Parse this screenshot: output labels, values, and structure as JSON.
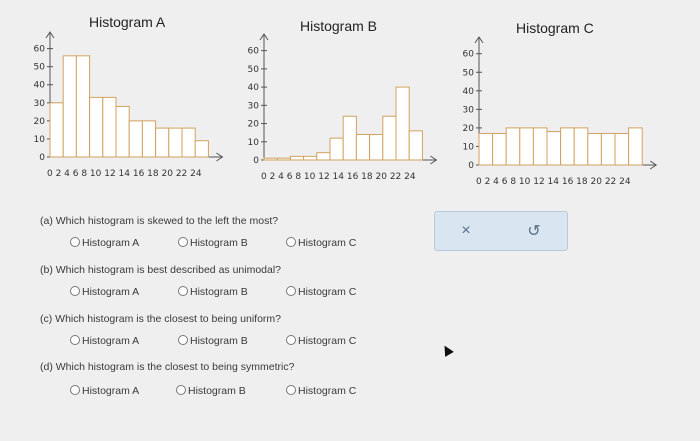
{
  "histograms": [
    {
      "title": "Histogram A",
      "y_ticks": [
        "60",
        "50",
        "40",
        "30",
        "20",
        "10",
        "0"
      ],
      "x_ticks": "0 2 4 6 8 10 12 14 16 18 20 22 24",
      "values": [
        30,
        56,
        56,
        33,
        33,
        28,
        20,
        20,
        16,
        16,
        16,
        9
      ]
    },
    {
      "title": "Histogram B",
      "y_ticks": [
        "60",
        "50",
        "40",
        "30",
        "20",
        "10",
        "0"
      ],
      "x_ticks": "0 2 4 6 8 10 12 14 16 18 20 22 24",
      "values": [
        1,
        1,
        2,
        2,
        4,
        12,
        24,
        14,
        14,
        24,
        40,
        16
      ]
    },
    {
      "title": "Histogram C",
      "y_ticks": [
        "60",
        "50",
        "40",
        "30",
        "20",
        "10",
        "0"
      ],
      "x_ticks": "0 2 4 6 8 10 12 14 16 18 20 22 24",
      "values": [
        17,
        17,
        20,
        20,
        20,
        18,
        20,
        20,
        17,
        17,
        17,
        20
      ]
    }
  ],
  "questions": [
    {
      "label": "(a) Which histogram is skewed to the left the most?",
      "options": [
        "Histogram A",
        "Histogram B",
        "Histogram C"
      ]
    },
    {
      "label": "(b) Which histogram is best described as unimodal?",
      "options": [
        "Histogram A",
        "Histogram B",
        "Histogram C"
      ]
    },
    {
      "label": "(c) Which histogram is the closest to being uniform?",
      "options": [
        "Histogram A",
        "Histogram B",
        "Histogram C"
      ]
    },
    {
      "label": "(d) Which histogram is the closest to being symmetric?",
      "options": [
        "Histogram A",
        "Histogram B",
        "Histogram C"
      ]
    }
  ],
  "buttons": {
    "clear_icon": "×",
    "undo_icon": "↺"
  },
  "colors": {
    "bar_fill": "#ffffff",
    "bar_stroke": "#d1a25f",
    "axis": "#555555",
    "panel": "#d9e6f2"
  }
}
